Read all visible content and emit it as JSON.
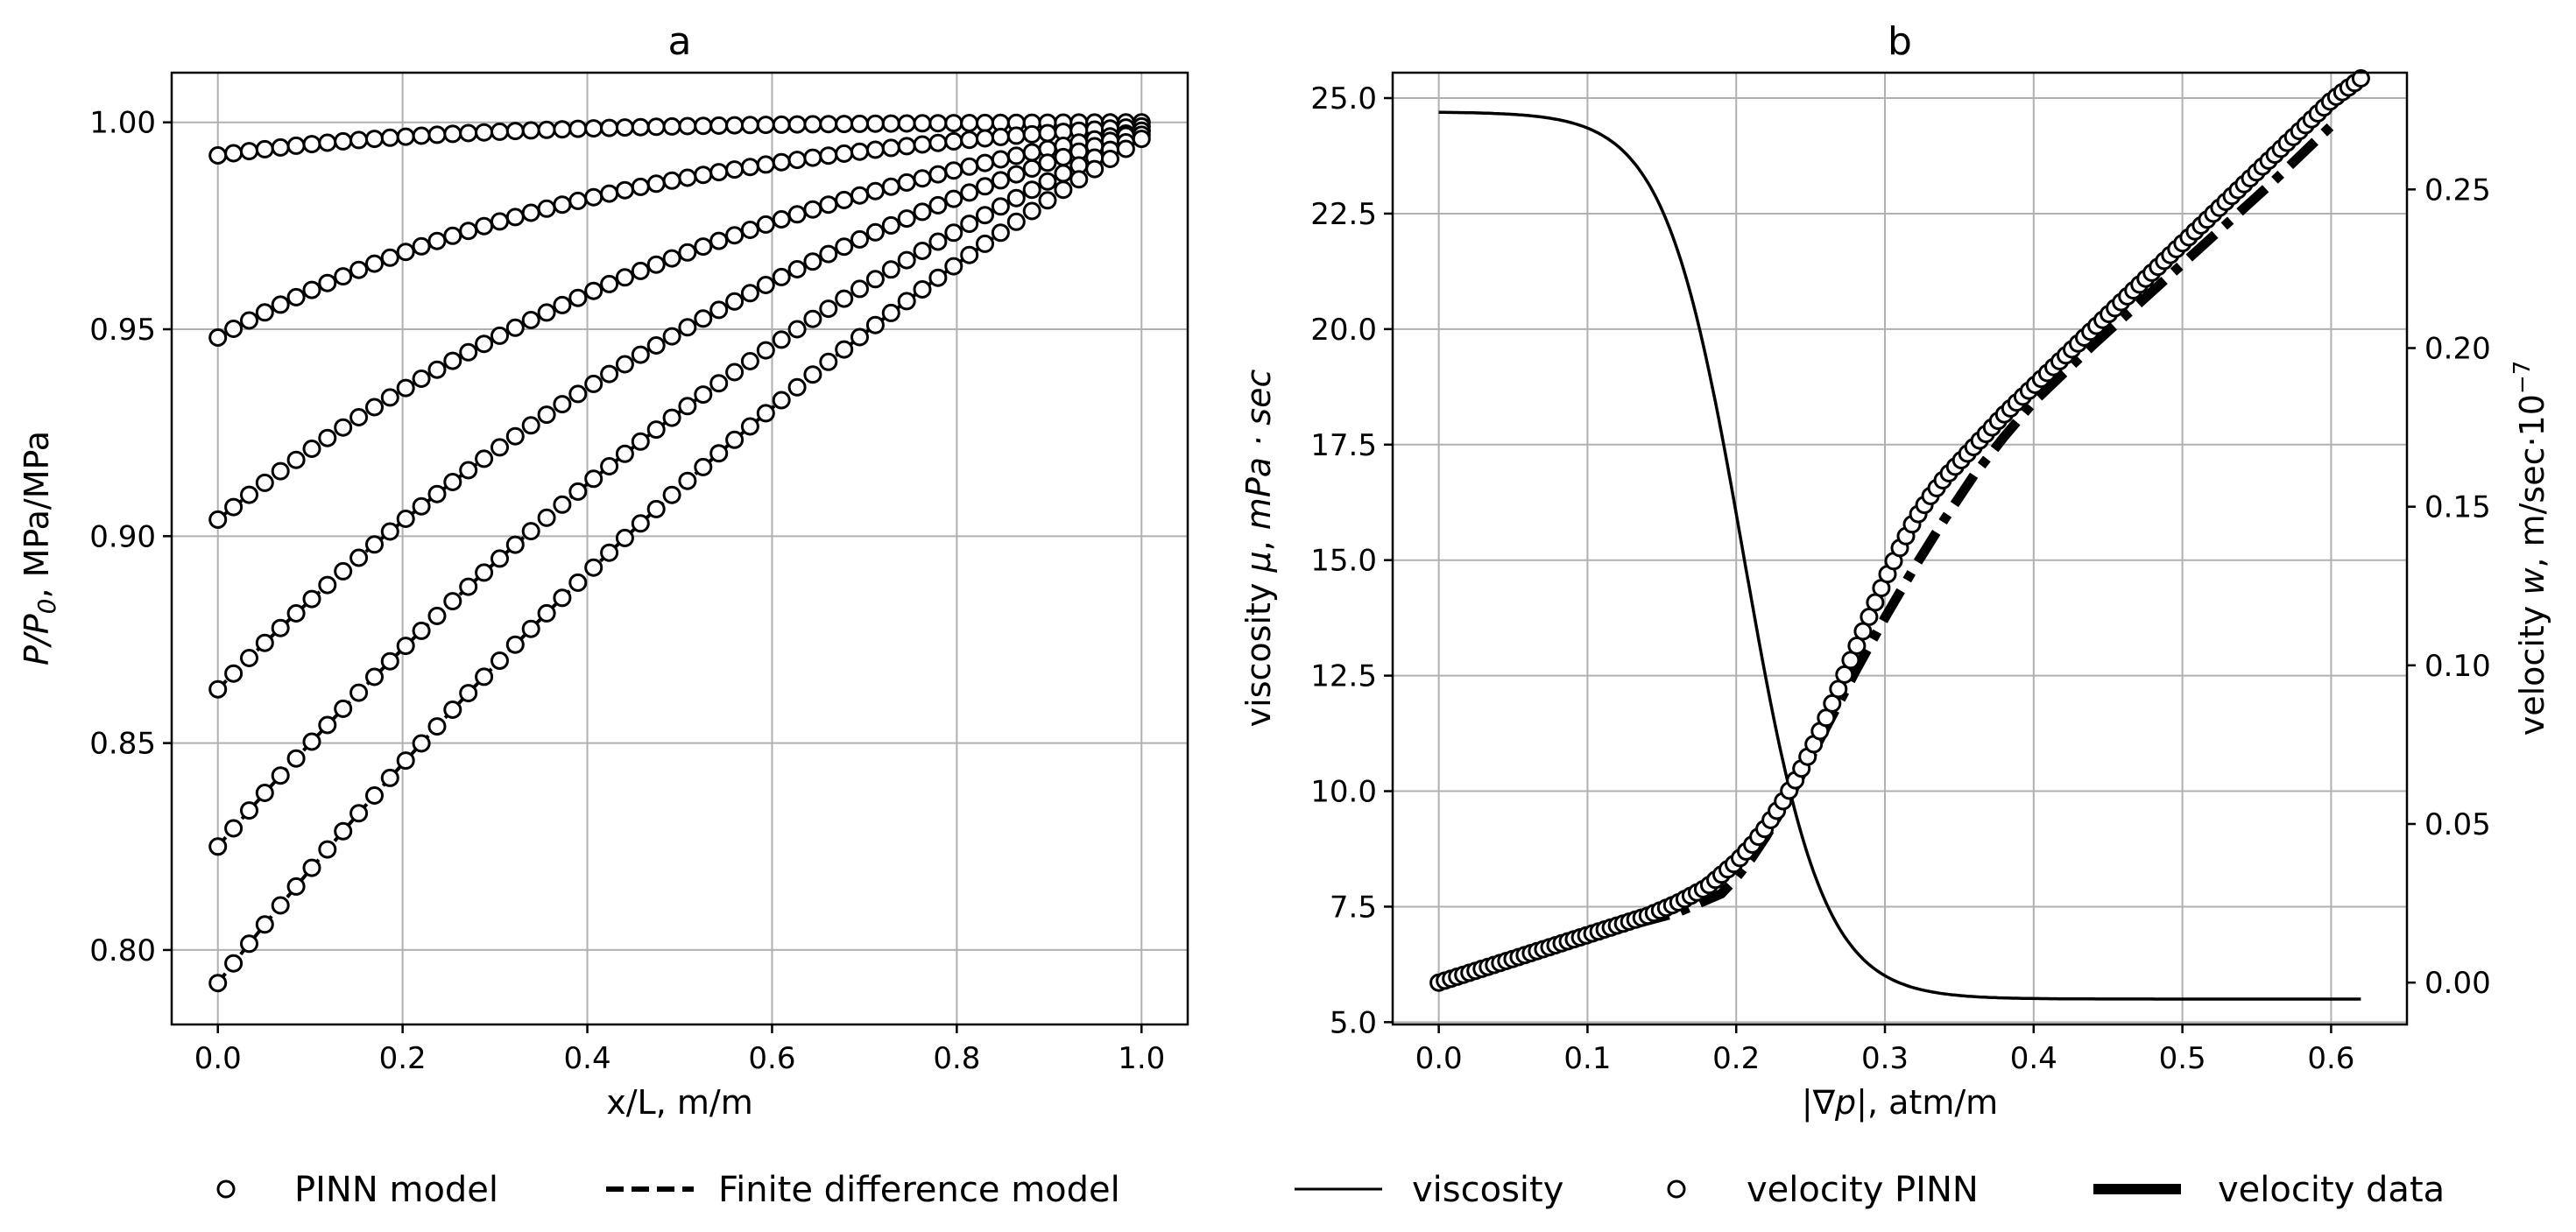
{
  "chart_data": [
    {
      "type": "line",
      "title": "a",
      "xlabel": "x/L, m/m",
      "ylabel_parts": [
        "P/P",
        "0",
        ", MPa/MPa"
      ],
      "xlim": [
        -0.05,
        1.05
      ],
      "ylim": [
        0.782,
        1.012
      ],
      "xticks": [
        0.0,
        0.2,
        0.4,
        0.6,
        0.8,
        1.0
      ],
      "xtick_labels": [
        "0.0",
        "0.2",
        "0.4",
        "0.6",
        "0.8",
        "1.0"
      ],
      "yticks": [
        0.8,
        0.85,
        0.9,
        0.95,
        1.0
      ],
      "ytick_labels": [
        "0.80",
        "0.85",
        "0.90",
        "0.95",
        "1.00"
      ],
      "grid": true,
      "n_points_per_curve": 60,
      "profiles": [
        {
          "p0": 0.992,
          "p1": 1.0,
          "shape": 4.0
        },
        {
          "p0": 0.948,
          "p1": 0.999,
          "shape": 2.2
        },
        {
          "p0": 0.904,
          "p1": 0.998,
          "shape": 1.5
        },
        {
          "p0": 0.863,
          "p1": 0.998,
          "shape": 1.15
        },
        {
          "p0": 0.825,
          "p1": 0.997,
          "shape": 0.9
        },
        {
          "p0": 0.792,
          "p1": 0.996,
          "shape": 0.7
        }
      ],
      "series": [
        {
          "name": "PINN model",
          "style": "open-circle-markers"
        },
        {
          "name": "Finite difference model",
          "style": "dashed-line"
        }
      ]
    },
    {
      "type": "line",
      "title": "b",
      "xlabel_parts": [
        "|∇p|",
        ", atm/m"
      ],
      "ylabel_left_parts": [
        "viscosity ",
        "μ",
        ", ",
        "mPa · sec"
      ],
      "ylabel_right_parts": [
        "velocity ",
        "w",
        ", m/sec·10",
        "−7"
      ],
      "xlim": [
        -0.031,
        0.651
      ],
      "ylim_left": [
        4.95,
        25.55
      ],
      "ylim_right": [
        -0.0132,
        0.2868
      ],
      "xticks": [
        0.0,
        0.1,
        0.2,
        0.3,
        0.4,
        0.5,
        0.6
      ],
      "xtick_labels": [
        "0.0",
        "0.1",
        "0.2",
        "0.3",
        "0.4",
        "0.5",
        "0.6"
      ],
      "yticks_left": [
        5.0,
        7.5,
        10.0,
        12.5,
        15.0,
        17.5,
        20.0,
        22.5,
        25.0
      ],
      "ytick_labels_left": [
        "5.0",
        "7.5",
        "10.0",
        "12.5",
        "15.0",
        "17.5",
        "20.0",
        "22.5",
        "25.0"
      ],
      "yticks_right": [
        0.0,
        0.05,
        0.1,
        0.15,
        0.2,
        0.25
      ],
      "ytick_labels_right": [
        "0.00",
        "0.05",
        "0.10",
        "0.15",
        "0.20",
        "0.25"
      ],
      "grid": true,
      "viscosity": {
        "mu_min": 5.5,
        "mu_max": 24.7,
        "x_mid": 0.205,
        "k": 38,
        "x_end": 0.62
      },
      "velocity_pinn": {
        "x": [
          0.0,
          0.02,
          0.04,
          0.06,
          0.08,
          0.1,
          0.12,
          0.14,
          0.16,
          0.18,
          0.19,
          0.2,
          0.21,
          0.22,
          0.23,
          0.24,
          0.25,
          0.26,
          0.27,
          0.28,
          0.29,
          0.3,
          0.31,
          0.32,
          0.33,
          0.34,
          0.36,
          0.38,
          0.4,
          0.42,
          0.44,
          0.46,
          0.48,
          0.5,
          0.52,
          0.54,
          0.56,
          0.58,
          0.6,
          0.62
        ],
        "y": [
          0.0,
          0.003,
          0.006,
          0.009,
          0.012,
          0.015,
          0.018,
          0.021,
          0.025,
          0.03,
          0.034,
          0.038,
          0.043,
          0.049,
          0.056,
          0.064,
          0.073,
          0.083,
          0.094,
          0.105,
          0.116,
          0.127,
          0.137,
          0.146,
          0.153,
          0.159,
          0.169,
          0.179,
          0.188,
          0.197,
          0.206,
          0.215,
          0.224,
          0.233,
          0.242,
          0.251,
          0.26,
          0.269,
          0.278,
          0.285
        ]
      },
      "velocity_data": {
        "x": [
          0.0,
          0.04,
          0.08,
          0.12,
          0.16,
          0.19,
          0.2,
          0.21,
          0.22,
          0.23,
          0.24,
          0.26,
          0.28,
          0.3,
          0.32,
          0.34,
          0.36,
          0.38,
          0.4,
          0.44,
          0.48,
          0.52,
          0.56,
          0.6
        ],
        "y": [
          0.0,
          0.005,
          0.011,
          0.017,
          0.022,
          0.028,
          0.033,
          0.039,
          0.046,
          0.054,
          0.062,
          0.08,
          0.098,
          0.115,
          0.131,
          0.146,
          0.16,
          0.172,
          0.183,
          0.201,
          0.218,
          0.235,
          0.252,
          0.27
        ]
      },
      "series": [
        {
          "name": "viscosity",
          "style": "thin-solid-line"
        },
        {
          "name": "velocity PINN",
          "style": "open-circle-markers"
        },
        {
          "name": "velocity data",
          "style": "thick-dash-dot-line"
        }
      ]
    }
  ]
}
